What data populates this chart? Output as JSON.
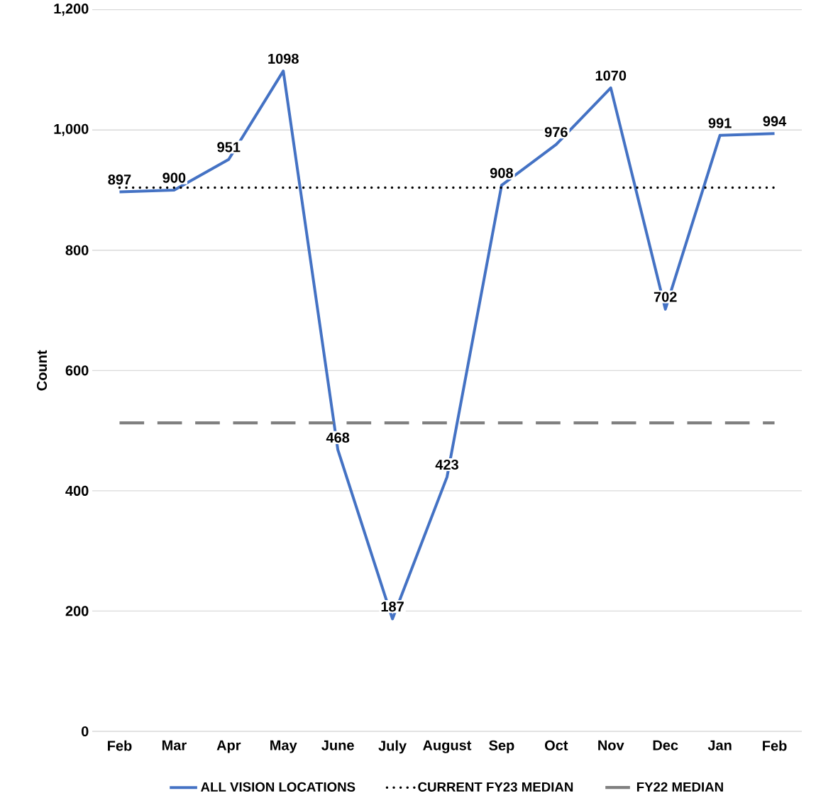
{
  "chart_data": {
    "type": "line",
    "ylabel": "Count",
    "categories": [
      "Feb",
      "Mar",
      "Apr",
      "May",
      "June",
      "July",
      "August",
      "Sep",
      "Oct",
      "Nov",
      "Dec",
      "Jan",
      "Feb"
    ],
    "series": [
      {
        "name": "ALL VISION LOCATIONS",
        "color": "#4472c4",
        "line_style": "solid",
        "values": [
          897,
          900,
          951,
          1098,
          468,
          187,
          423,
          908,
          976,
          1070,
          702,
          991,
          994
        ],
        "value_labels": [
          "897",
          "900",
          "951",
          "1098",
          "468",
          "187",
          "423",
          "908",
          "976",
          "1070",
          "702",
          "991",
          "994"
        ]
      },
      {
        "name": "CURRENT FY23 MEDIAN",
        "color": "#000000",
        "line_style": "dotted",
        "values": [
          904,
          904,
          904,
          904,
          904,
          904,
          904,
          904,
          904,
          904,
          904,
          904,
          904
        ]
      },
      {
        "name": "FY22 MEDIAN",
        "color": "#808080",
        "line_style": "dashed",
        "values": [
          513,
          513,
          513,
          513,
          513,
          513,
          513,
          513,
          513,
          513,
          513,
          513,
          513
        ]
      }
    ],
    "ylim": [
      0,
      1200
    ],
    "yticks": [
      0,
      200,
      400,
      600,
      800,
      {
        "value": 1000,
        "label": "1,000"
      },
      {
        "value": 1200,
        "label": "1,200"
      }
    ],
    "grid": "y",
    "legend": "bottom"
  }
}
